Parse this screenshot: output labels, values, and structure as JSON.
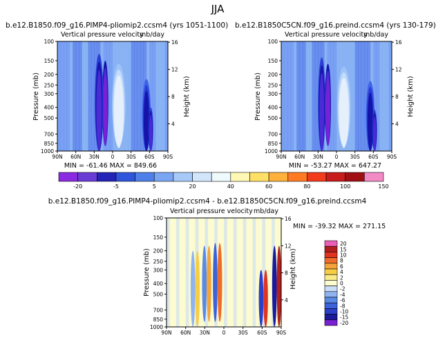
{
  "figure_title": "JJA",
  "chart_data": [
    {
      "type": "heatmap",
      "title": "b.e12.B1850.f09_g16.PIMP4-pliomip2.ccsm4 (yrs 1051-1100)",
      "subtitle_left": "Vertical pressure velocity",
      "units": "mb/day",
      "ylabel": "Pressure (mb)",
      "ylabel_right": "Height (km)",
      "x_ticks": [
        "90N",
        "60N",
        "30N",
        "0",
        "30S",
        "60S",
        "90S"
      ],
      "y_ticks": [
        "100",
        "150",
        "200",
        "250",
        "300",
        "400",
        "500",
        "700",
        "850",
        "1000"
      ],
      "y_ticks_right": [
        "16",
        "12",
        "8",
        "4"
      ],
      "stats": {
        "min": -61.46,
        "max": 849.66
      },
      "stats_text": "MIN = -61.46   MAX = 849.66",
      "colormap": [
        "#7d1fd6",
        "#4b2bd6",
        "#1414aa",
        "#2a3ed6",
        "#3d63e8",
        "#5b84f0",
        "#7aa5f3",
        "#9ec4f7",
        "#c3dcfb",
        "#e6f0fc"
      ],
      "features": [
        {
          "lat": 12,
          "kind": "ascent",
          "level": 0,
          "top": 150,
          "bottom": 900,
          "halfwidth": 5
        },
        {
          "lat": 22,
          "kind": "ascent",
          "level": 1,
          "top": 130,
          "bottom": 1000,
          "halfwidth": 7
        },
        {
          "lat": -10,
          "kind": "subsidence",
          "level": 9,
          "top": 160,
          "bottom": 900,
          "halfwidth": 11
        },
        {
          "lat": -55,
          "kind": "ascent",
          "level": 2,
          "top": 220,
          "bottom": 1000,
          "halfwidth": 7
        },
        {
          "lat": -62,
          "kind": "ascent",
          "level": 1,
          "top": 400,
          "bottom": 1000,
          "halfwidth": 4
        }
      ]
    },
    {
      "type": "heatmap",
      "title": "b.e12.B1850C5CN.f09_g16.preind.ccsm4 (yrs 130-179)",
      "subtitle_left": "Vertical pressure velocity",
      "units": "mb/day",
      "ylabel": "Pressure (mb)",
      "ylabel_right": "Height (km)",
      "x_ticks": [
        "90N",
        "60N",
        "30N",
        "0",
        "30S",
        "60S",
        "90S"
      ],
      "y_ticks": [
        "100",
        "150",
        "200",
        "250",
        "300",
        "400",
        "500",
        "700",
        "850",
        "1000"
      ],
      "y_ticks_right": [
        "16",
        "12",
        "8",
        "4"
      ],
      "stats": {
        "min": -53.27,
        "max": 647.27
      },
      "stats_text": "MIN = -53.27   MAX = 647.27",
      "colormap": [
        "#7d1fd6",
        "#4b2bd6",
        "#1414aa",
        "#2a3ed6",
        "#3d63e8",
        "#5b84f0",
        "#7aa5f3",
        "#9ec4f7",
        "#c3dcfb",
        "#e6f0fc"
      ],
      "features": [
        {
          "lat": 14,
          "kind": "ascent",
          "level": 0,
          "top": 160,
          "bottom": 900,
          "halfwidth": 5
        },
        {
          "lat": 24,
          "kind": "ascent",
          "level": 1,
          "top": 140,
          "bottom": 1000,
          "halfwidth": 6
        },
        {
          "lat": -12,
          "kind": "subsidence",
          "level": 9,
          "top": 170,
          "bottom": 900,
          "halfwidth": 11
        },
        {
          "lat": -55,
          "kind": "ascent",
          "level": 2,
          "top": 230,
          "bottom": 1000,
          "halfwidth": 7
        },
        {
          "lat": -62,
          "kind": "ascent",
          "level": 1,
          "top": 420,
          "bottom": 1000,
          "halfwidth": 4
        }
      ]
    },
    {
      "type": "heatmap",
      "title": "b.e12.B1850.f09_g16.PIMP4-pliomip2.ccsm4 - b.e12.B1850C5CN.f09_g16.preind.ccsm4",
      "subtitle_left": "Vertical pressure velocity",
      "units": "mb/day",
      "ylabel": "Pressure (mb)",
      "ylabel_right": "Height (km)",
      "x_ticks": [
        "90N",
        "60N",
        "30N",
        "0",
        "30S",
        "60S",
        "90S"
      ],
      "y_ticks": [
        "100",
        "150",
        "200",
        "250",
        "300",
        "400",
        "500",
        "700",
        "850",
        "1000"
      ],
      "y_ticks_right": [
        "16",
        "12",
        "8",
        "4"
      ],
      "stats": {
        "min": -39.32,
        "max": 271.15
      },
      "stats_text": "MIN = -39.32   MAX = 271.15",
      "colormap": [
        "#7a1fd2",
        "#1a1a9a",
        "#2b3fc8",
        "#3b62d8",
        "#5a8ae6",
        "#8fb4f0",
        "#c8ddf7",
        "#fdfbd0",
        "#faeb88",
        "#f7cd45",
        "#f4a23a",
        "#ee6b2a",
        "#e03423",
        "#b21e1e",
        "#ec5db6"
      ],
      "features": [
        {
          "lat": 45,
          "kind": "dipole",
          "positive_level": 9,
          "negative_level": 5,
          "top": 200,
          "bottom": 1000,
          "halfwidth": 3
        },
        {
          "lat": 27,
          "kind": "dipole",
          "positive_level": 10,
          "negative_level": 4,
          "top": 180,
          "bottom": 900,
          "halfwidth": 3
        },
        {
          "lat": 10,
          "kind": "dipole",
          "positive_level": 11,
          "negative_level": 3,
          "top": 170,
          "bottom": 900,
          "halfwidth": 3
        },
        {
          "lat": -62,
          "kind": "dipole",
          "positive_level": 12,
          "negative_level": 2,
          "top": 300,
          "bottom": 1000,
          "halfwidth": 3
        },
        {
          "lat": -83,
          "kind": "dipole",
          "positive_level": 13,
          "negative_level": 1,
          "top": 180,
          "bottom": 1000,
          "halfwidth": 3
        }
      ]
    }
  ],
  "colorbar_top": {
    "labels": [
      "-20",
      "-5",
      "5",
      "20",
      "40",
      "60",
      "80",
      "100",
      "150"
    ],
    "colors": [
      "#8a2be2",
      "#6a3cd6",
      "#2323b8",
      "#2f55dc",
      "#4f7fe8",
      "#7aa5f3",
      "#a6c9f7",
      "#d2e6fb",
      "#eefafd",
      "#fff7b4",
      "#ffe066",
      "#ffb13b",
      "#ff7a22",
      "#f23a1c",
      "#c81b1b",
      "#a00f14",
      "#f28ac5"
    ]
  },
  "colorbar_bottom": {
    "labels": [
      "20",
      "15",
      "10",
      "8",
      "6",
      "4",
      "2",
      "0",
      "-2",
      "-4",
      "-6",
      "-8",
      "-10",
      "-15",
      "-20"
    ],
    "colors": [
      "#ec5db6",
      "#b21e1e",
      "#e03423",
      "#ee6b2a",
      "#f4a23a",
      "#f7cd45",
      "#faeb88",
      "#fdfbd0",
      "#c8ddf7",
      "#8fb4f0",
      "#5a8ae6",
      "#3b62d8",
      "#2b3fc8",
      "#1a1a9a",
      "#7a1fd2"
    ]
  }
}
